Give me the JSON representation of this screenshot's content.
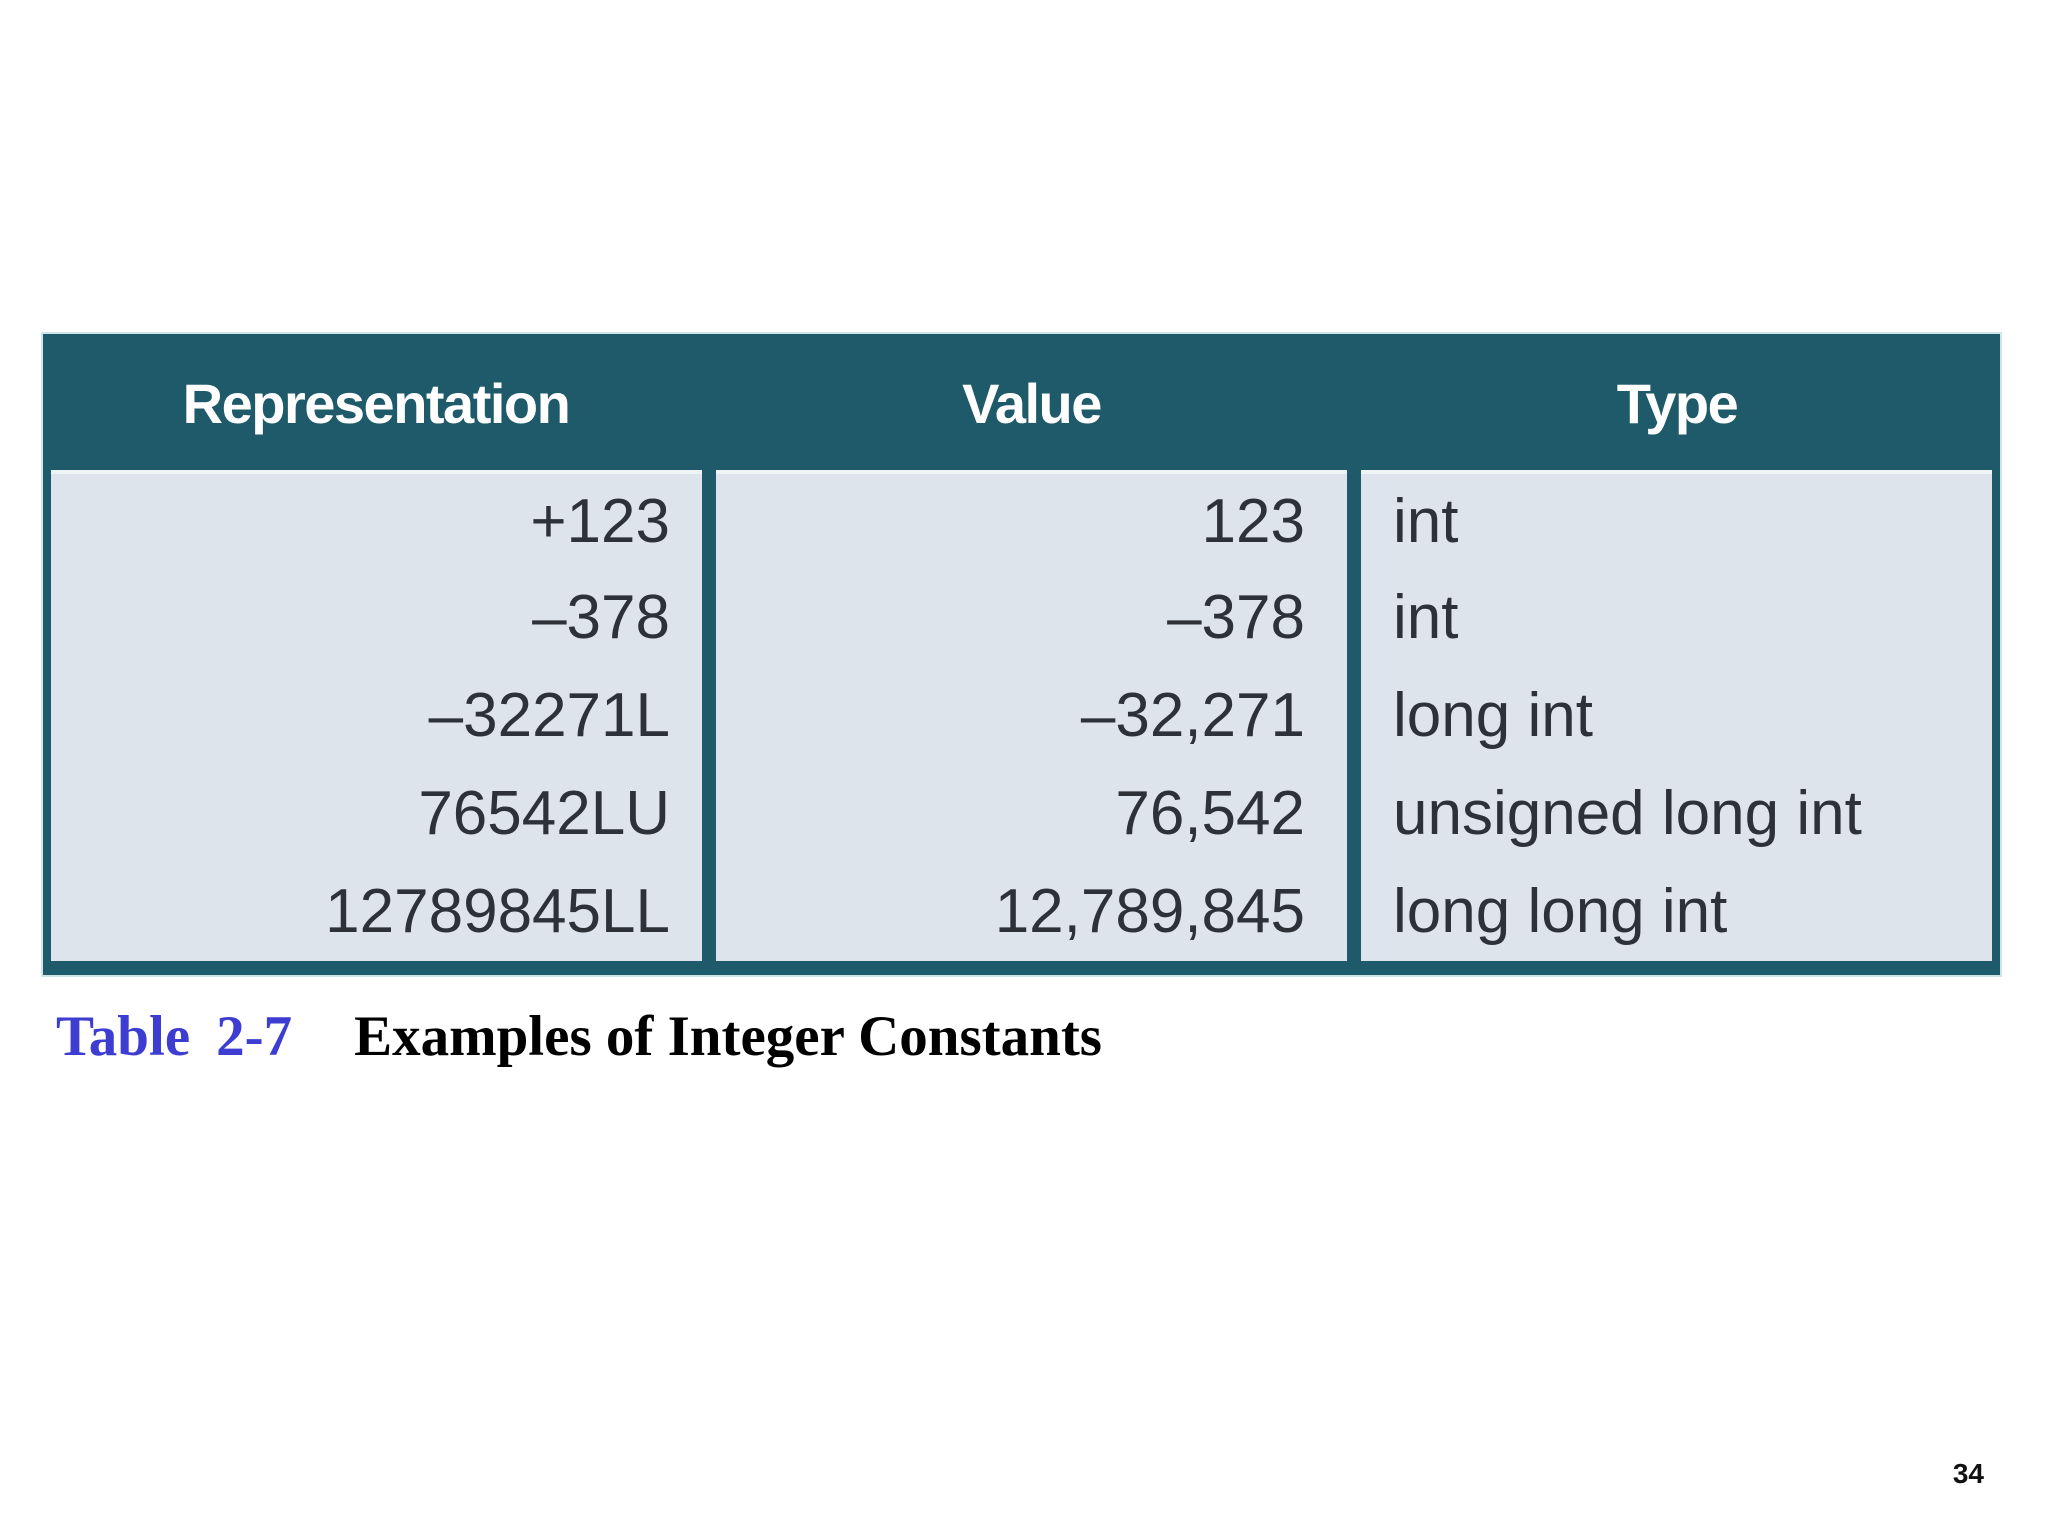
{
  "table": {
    "headers": [
      "Representation",
      "Value",
      "Type"
    ],
    "rows": [
      {
        "representation": "+123",
        "value": "123",
        "type": "int"
      },
      {
        "representation": "–378",
        "value": "–378",
        "type": "int"
      },
      {
        "representation": "–32271L",
        "value": "–32,271",
        "type": "long int"
      },
      {
        "representation": "76542LU",
        "value": "76,542",
        "type": "unsigned long int"
      },
      {
        "representation": "12789845LL",
        "value": "12,789,845",
        "type": "long long int"
      }
    ],
    "colors": {
      "header_bg": "#1e5a69",
      "body_bg": "#dde4eb",
      "header_text": "#ffffff",
      "body_text": "#2d3238",
      "edge_highlight": "#cfe5e9"
    }
  },
  "caption": {
    "label": "Table",
    "number": "2-7",
    "title": "Examples of Integer Constants",
    "label_color": "#3d3dd2"
  },
  "page": {
    "number": "34"
  }
}
